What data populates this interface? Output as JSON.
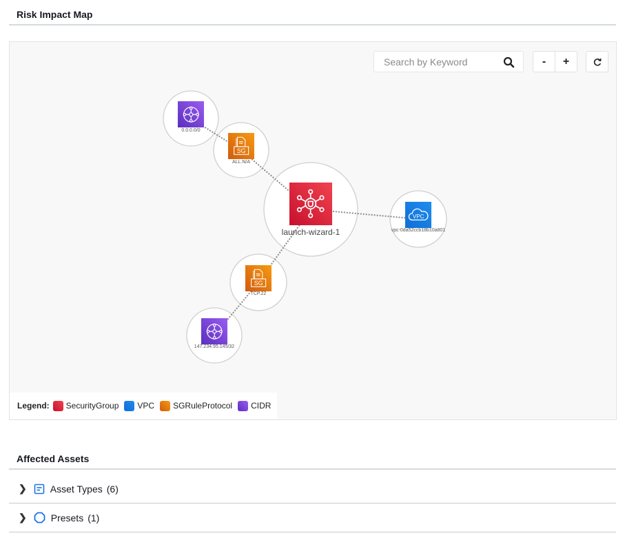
{
  "risk_map": {
    "title": "Risk Impact Map",
    "search_placeholder": "Search by Keyword",
    "zoom_out_label": "-",
    "zoom_in_label": "+",
    "nodes": [
      {
        "label": "0.0.0.0/0",
        "type": "CIDR"
      },
      {
        "label": "ALL.N/A",
        "type": "SGRuleProtocol"
      },
      {
        "label": "launch-wizard-1",
        "type": "SecurityGroup"
      },
      {
        "label": "vpc-0da52ccb18b10a801",
        "type": "VPC"
      },
      {
        "label": "TCP.22",
        "type": "SGRuleProtocol"
      },
      {
        "label": "147.234.95.145/32",
        "type": "CIDR"
      }
    ],
    "edges": [
      [
        "0.0.0.0/0",
        "ALL.N/A"
      ],
      [
        "ALL.N/A",
        "launch-wizard-1"
      ],
      [
        "launch-wizard-1",
        "vpc-0da52ccb18b10a801"
      ],
      [
        "launch-wizard-1",
        "TCP.22"
      ],
      [
        "TCP.22",
        "147.234.95.145/32"
      ]
    ],
    "legend": {
      "title": "Legend:",
      "items": [
        {
          "label": "SecurityGroup",
          "color": "#d8202f"
        },
        {
          "label": "VPC",
          "color": "#1a73e8"
        },
        {
          "label": "SGRuleProtocol",
          "color": "#e8700f"
        },
        {
          "label": "CIDR",
          "color": "#6b3fd1"
        }
      ]
    }
  },
  "affected_assets": {
    "title": "Affected Assets",
    "sections": [
      {
        "label": "Asset Types",
        "count": "(6)",
        "icon": "list-icon",
        "color": "#1a73e8"
      },
      {
        "label": "Presets",
        "count": "(1)",
        "icon": "octagon-icon",
        "color": "#1a73e8"
      }
    ]
  }
}
